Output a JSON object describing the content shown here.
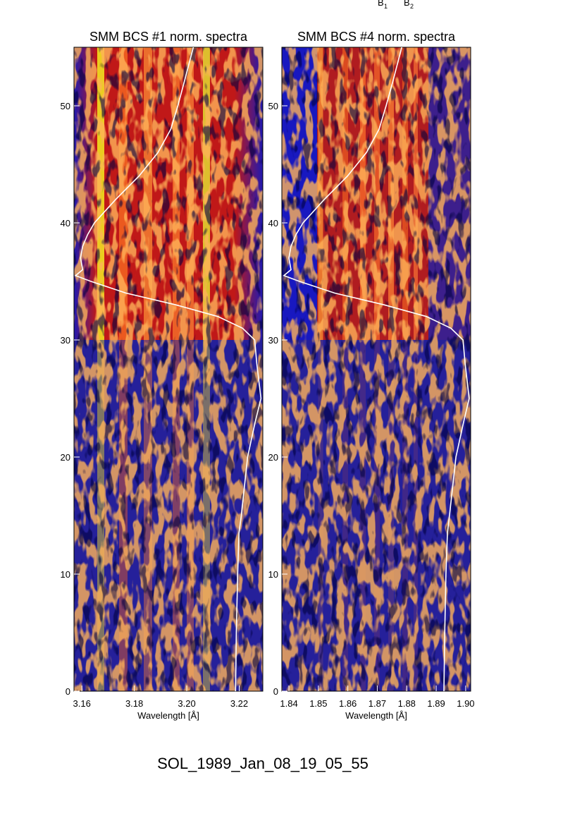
{
  "annotations": [
    {
      "text": "B",
      "sub": "1"
    },
    {
      "text": "B",
      "sub": "2"
    }
  ],
  "footer": "SOL_1989_Jan_08_19_05_55",
  "chart_data": [
    {
      "type": "line",
      "title": "SMM BCS #1 norm. spectra",
      "x_label": "Wavelength [Å]",
      "xlim": [
        3.157,
        3.229
      ],
      "ylim": [
        0,
        55
      ],
      "xticks": [
        3.16,
        3.18,
        {
          "value": 3.2,
          "label": "3.20"
        },
        3.22
      ],
      "yticks": [
        0,
        10,
        20,
        30,
        40,
        50
      ],
      "y": [
        0,
        5,
        10,
        13.5,
        15,
        20,
        23,
        25,
        28,
        30,
        31,
        32,
        33,
        34,
        35,
        35.5,
        36,
        37,
        38,
        39,
        40,
        42,
        44,
        46,
        48,
        50,
        52,
        55
      ],
      "series": [
        {
          "color": "#ffffff",
          "values": [
            3.2186,
            3.2189,
            3.2194,
            3.2199,
            3.2208,
            3.2232,
            3.2261,
            3.2283,
            3.2267,
            3.2259,
            3.2213,
            3.2119,
            3.1958,
            3.1769,
            3.1635,
            3.1576,
            3.1603,
            3.1595,
            3.1603,
            3.1622,
            3.1648,
            3.1729,
            3.1818,
            3.189,
            3.1939,
            3.1966,
            3.199,
            3.2025
          ]
        }
      ]
    },
    {
      "type": "line",
      "title": "SMM BCS #4 norm. spectra",
      "x_label": "Wavelength [Å]",
      "xlim": [
        1.8376,
        1.9017
      ],
      "ylim": [
        0,
        55
      ],
      "xticks": [
        1.84,
        1.85,
        1.86,
        1.87,
        1.88,
        1.89,
        {
          "value": 1.9,
          "label": "1.90"
        }
      ],
      "yticks": [
        0,
        10,
        20,
        30,
        40,
        50
      ],
      "y": [
        0,
        5,
        10,
        13.5,
        15,
        20,
        23,
        25,
        28,
        30,
        31,
        32,
        33,
        34,
        35,
        35.5,
        36,
        37,
        38,
        39,
        40,
        42,
        44,
        46,
        48,
        50,
        52,
        55
      ],
      "series": [
        {
          "color": "#ffffff",
          "values": [
            1.8926,
            1.8929,
            1.8933,
            1.8938,
            1.8945,
            1.8967,
            1.8993,
            1.9012,
            1.8998,
            1.8991,
            1.895,
            1.8867,
            1.8723,
            1.8556,
            1.8436,
            1.8383,
            1.8407,
            1.84,
            1.8407,
            1.8424,
            1.8448,
            1.852,
            1.8599,
            1.8663,
            1.8706,
            1.873,
            1.8752,
            1.8783
          ]
        }
      ]
    }
  ]
}
